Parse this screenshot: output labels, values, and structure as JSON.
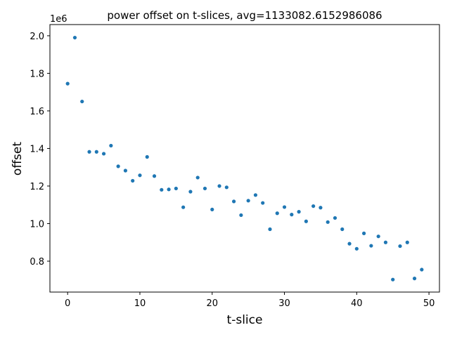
{
  "chart_data": {
    "type": "scatter",
    "title": "power offset on t-slices, avg=1133082.6152986086",
    "xlabel": "t-slice",
    "ylabel": "offset",
    "offset_text": "1e6",
    "xlim": [
      -2.45,
      51.45
    ],
    "ylim": [
      0.6355,
      2.0595
    ],
    "xticks": [
      0,
      10,
      20,
      30,
      40,
      50
    ],
    "xtick_labels": [
      "0",
      "10",
      "20",
      "30",
      "40",
      "50"
    ],
    "yticks": [
      0.8,
      1.0,
      1.2,
      1.4,
      1.6,
      1.8,
      2.0
    ],
    "ytick_labels": [
      "0.8",
      "1.0",
      "1.2",
      "1.4",
      "1.6",
      "1.8",
      "2.0"
    ],
    "marker_color": "#1f77b4",
    "grid": false,
    "series": [
      {
        "x": [
          0,
          1,
          2,
          3,
          4,
          5,
          6,
          7,
          8,
          9,
          10,
          11,
          12,
          13,
          14,
          15,
          16,
          17,
          18,
          19,
          20,
          21,
          22,
          23,
          24,
          25,
          26,
          27,
          28,
          29,
          30,
          31,
          32,
          33,
          34,
          35,
          36,
          37,
          38,
          39,
          40,
          41,
          42,
          43,
          44,
          45,
          46,
          47,
          48,
          49
        ],
        "y": [
          1.745,
          1.99,
          1.65,
          1.382,
          1.382,
          1.372,
          1.415,
          1.305,
          1.282,
          1.228,
          1.257,
          1.355,
          1.253,
          1.18,
          1.182,
          1.187,
          1.087,
          1.17,
          1.245,
          1.187,
          1.075,
          1.2,
          1.193,
          1.118,
          1.045,
          1.122,
          1.152,
          1.11,
          0.97,
          1.055,
          1.088,
          1.048,
          1.063,
          1.012,
          1.093,
          1.085,
          1.008,
          1.03,
          0.97,
          0.893,
          0.866,
          0.948,
          0.882,
          0.932,
          0.9,
          0.702,
          0.88,
          0.9,
          0.708,
          0.755
        ]
      }
    ]
  }
}
